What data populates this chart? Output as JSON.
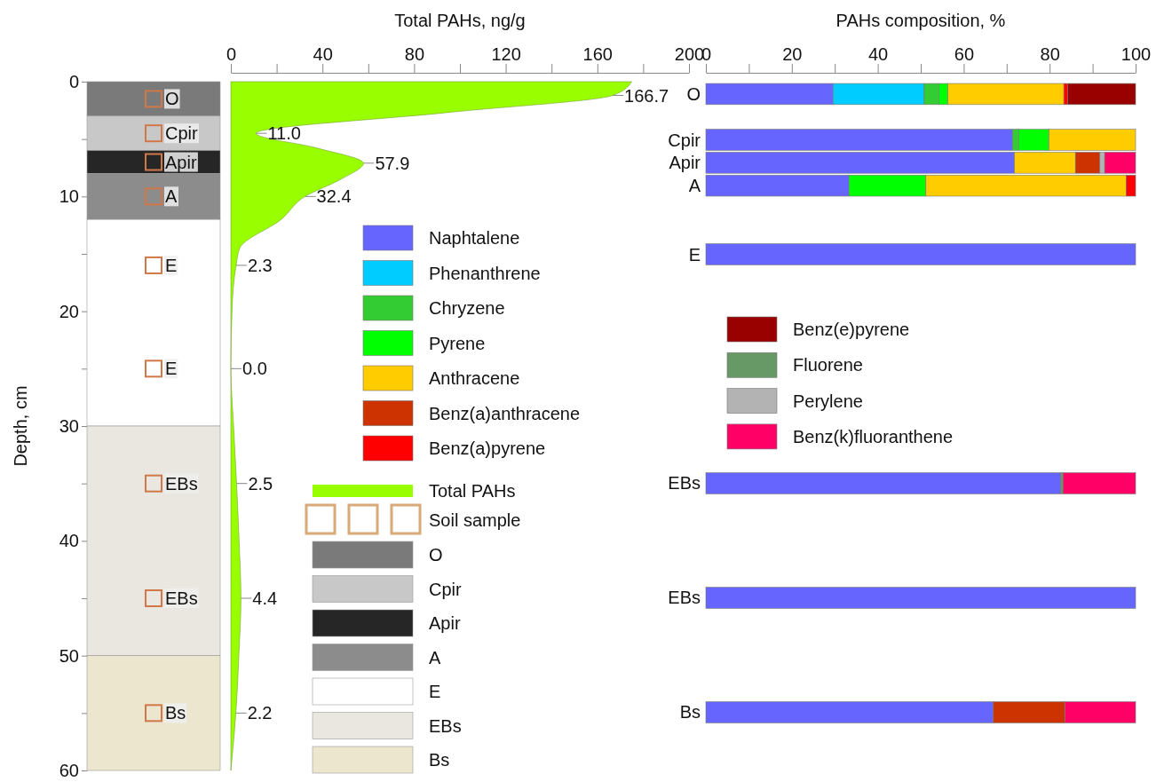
{
  "chart_data": [
    {
      "type": "bar",
      "stacked": true,
      "ylabel": "Depth, cm",
      "ylim": [
        60,
        0
      ],
      "yticks": [
        0,
        {
          "value": 5,
          "label": null
        },
        10,
        {
          "value": 15,
          "label": null
        },
        20,
        {
          "value": 25,
          "label": null
        },
        30,
        {
          "value": 35,
          "label": null
        },
        40,
        {
          "value": 45,
          "label": null
        },
        50,
        {
          "value": 55,
          "label": null
        },
        60
      ],
      "tick_labels": "y",
      "legend": "right",
      "categories": [
        null
      ],
      "series": [
        {
          "name": "O",
          "color": "#7a7a7a",
          "values": [
            3
          ]
        },
        {
          "name": "Cpir",
          "color": "#c8c8c8",
          "values": [
            3
          ]
        },
        {
          "name": "Apir",
          "color": "#262626",
          "values": [
            2
          ]
        },
        {
          "name": "A",
          "color": "#8c8c8c",
          "values": [
            4
          ]
        },
        {
          "name": "E",
          "color": "#ffffff",
          "values": [
            18
          ]
        },
        {
          "name": "EBs",
          "color": "#e9e7df",
          "values": [
            20
          ]
        },
        {
          "name": "Bs",
          "color": "#ece6cf",
          "values": [
            10
          ]
        }
      ],
      "annotations": [
        {
          "text": "O",
          "y": 1.5
        },
        {
          "text": "Cpir",
          "y": 4.5
        },
        {
          "text": "Apir",
          "y": 7
        },
        {
          "text": "A",
          "y": 10
        },
        {
          "text": "E",
          "y": 16
        },
        {
          "text": "E",
          "y": 25
        },
        {
          "text": "EBs",
          "y": 35
        },
        {
          "text": "EBs",
          "y": 45
        },
        {
          "text": "Bs",
          "y": 55
        },
        "Soil sample"
      ]
    },
    {
      "type": "area",
      "orientation": "horizontal",
      "xlabel": "Total PAHs, ng/g",
      "xlim": [
        0,
        200
      ],
      "xticks": [
        0,
        {
          "value": 20,
          "label": null
        },
        40,
        {
          "value": 60,
          "label": null
        },
        80,
        {
          "value": 100,
          "label": null
        },
        120,
        {
          "value": 140,
          "label": null
        },
        160,
        {
          "value": 180,
          "label": null
        },
        200
      ],
      "ylim": [
        60,
        0
      ],
      "tick_labels": "x",
      "legend": "right",
      "x": [
        0,
        1.2,
        2.7,
        4.5,
        5.8,
        7.1,
        8.5,
        10,
        12,
        14.5,
        16,
        20,
        25,
        30,
        35,
        40,
        45,
        50,
        55,
        60
      ],
      "series": [
        {
          "name": "Total PAHs",
          "color": "#99ff00",
          "values": [
            175,
            166.7,
            94,
            11,
            38,
            57.9,
            48,
            32.4,
            22,
            3.9,
            2.3,
            0.5,
            0,
            1.2,
            2.5,
            3.6,
            4.4,
            3.5,
            2.2,
            0
          ],
          "value_labels": [
            null,
            "166.7",
            null,
            "11.0",
            null,
            "57.9",
            null,
            "32.4",
            null,
            null,
            "2.3",
            null,
            "0.0",
            null,
            "2.5",
            null,
            "4.4",
            null,
            "2.2",
            null
          ]
        }
      ]
    },
    {
      "type": "bar",
      "orientation": "horizontal",
      "stacked": true,
      "xlabel": "PAHs composition, %",
      "xlim": [
        0,
        100
      ],
      "xticks": [
        0,
        {
          "value": 10,
          "label": null
        },
        20,
        {
          "value": 30,
          "label": null
        },
        40,
        {
          "value": 50,
          "label": null
        },
        60,
        {
          "value": 70,
          "label": null
        },
        80,
        {
          "value": 90,
          "label": null
        },
        100
      ],
      "tick_labels": "x",
      "legend": "left",
      "categories": [
        "O",
        null,
        "Cpir",
        "Apir",
        "A",
        null,
        null,
        "E",
        null,
        null,
        null,
        null,
        null,
        null,
        null,
        null,
        null,
        "EBs",
        null,
        null,
        null,
        null,
        "EBs",
        null,
        null,
        null,
        null,
        "Bs",
        null,
        null
      ],
      "series": [
        {
          "name": "Naphtalene",
          "color": "#6666ff",
          "values": [
            29.6,
            null,
            71.4,
            71.8,
            33.3,
            null,
            null,
            100,
            null,
            null,
            null,
            null,
            null,
            null,
            null,
            null,
            null,
            82.6,
            null,
            null,
            null,
            null,
            100,
            null,
            null,
            null,
            null,
            66.9,
            null,
            null
          ]
        },
        {
          "name": "Phenanthrene",
          "color": "#00ccff",
          "values": [
            21.2,
            null,
            0,
            0,
            0,
            null,
            null,
            0,
            null,
            null,
            null,
            null,
            null,
            null,
            null,
            null,
            null,
            0,
            null,
            null,
            null,
            null,
            0,
            null,
            null,
            null,
            null,
            0,
            null,
            null
          ]
        },
        {
          "name": "Chryzene",
          "color": "#33cc33",
          "values": [
            3.4,
            null,
            1.4,
            0,
            0,
            null,
            null,
            0,
            null,
            null,
            null,
            null,
            null,
            null,
            null,
            null,
            null,
            0,
            null,
            null,
            null,
            null,
            0,
            null,
            null,
            null,
            null,
            0,
            null,
            null
          ]
        },
        {
          "name": "Pyrene",
          "color": "#00ff00",
          "values": [
            2.1,
            null,
            7,
            0,
            17.9,
            null,
            null,
            0,
            null,
            null,
            null,
            null,
            null,
            null,
            null,
            null,
            null,
            0,
            null,
            null,
            null,
            null,
            0,
            null,
            null,
            null,
            null,
            0,
            null,
            null
          ]
        },
        {
          "name": "Anthracene",
          "color": "#ffcc00",
          "values": [
            27,
            null,
            20.2,
            14.2,
            46.6,
            null,
            null,
            0,
            null,
            null,
            null,
            null,
            null,
            null,
            null,
            null,
            null,
            0,
            null,
            null,
            null,
            null,
            0,
            null,
            null,
            null,
            null,
            0,
            null,
            null
          ]
        },
        {
          "name": "Benz(a)anthracene",
          "color": "#cc3300",
          "values": [
            0,
            null,
            0,
            5.7,
            0,
            null,
            null,
            0,
            null,
            null,
            null,
            null,
            null,
            null,
            null,
            null,
            null,
            0,
            null,
            null,
            null,
            null,
            0,
            null,
            null,
            null,
            null,
            16.7,
            null,
            null
          ]
        },
        {
          "name": "Benz(a)pyrene",
          "color": "#ff0000",
          "values": [
            0.9,
            null,
            0,
            0,
            2.2,
            null,
            null,
            0,
            null,
            null,
            null,
            null,
            null,
            null,
            null,
            null,
            null,
            0,
            null,
            null,
            null,
            null,
            0,
            null,
            null,
            null,
            null,
            0,
            null,
            null
          ]
        },
        {
          "name": "Benz(e)pyrene",
          "color": "#990000",
          "values": [
            15.8,
            null,
            0,
            0,
            0,
            null,
            null,
            0,
            null,
            null,
            null,
            null,
            null,
            null,
            null,
            null,
            null,
            0,
            null,
            null,
            null,
            null,
            0,
            null,
            null,
            null,
            null,
            0,
            null,
            null
          ]
        },
        {
          "name": "Fluorene",
          "color": "#669966",
          "values": [
            0,
            null,
            0,
            0,
            0,
            null,
            null,
            0,
            null,
            null,
            null,
            null,
            null,
            null,
            null,
            null,
            null,
            0.5,
            null,
            null,
            null,
            null,
            0,
            null,
            null,
            null,
            null,
            0,
            null,
            null
          ]
        },
        {
          "name": "Perylene",
          "color": "#b3b3b3",
          "values": [
            0,
            null,
            0,
            1.1,
            0,
            null,
            null,
            0,
            null,
            null,
            null,
            null,
            null,
            null,
            null,
            null,
            null,
            0,
            null,
            null,
            null,
            null,
            0,
            null,
            null,
            null,
            null,
            0,
            null,
            null
          ]
        },
        {
          "name": "Benz(k)fluoranthene",
          "color": "#ff0066",
          "values": [
            0,
            null,
            0,
            7.2,
            0,
            null,
            null,
            0,
            null,
            null,
            null,
            null,
            null,
            null,
            null,
            null,
            null,
            16.9,
            null,
            null,
            null,
            null,
            0,
            null,
            null,
            null,
            null,
            16.4,
            null,
            null
          ]
        }
      ]
    }
  ]
}
